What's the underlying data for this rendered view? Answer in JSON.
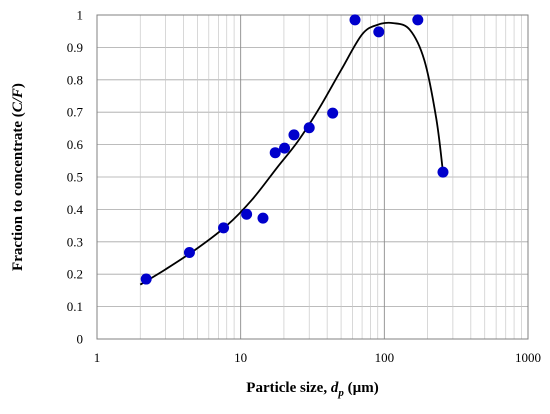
{
  "chart_data": {
    "type": "scatter",
    "title": "",
    "xlabel": {
      "prefix": "Particle size, ",
      "var": "d",
      "sub": "p",
      "suffix": " (µm)"
    },
    "ylabel": {
      "prefix": "Fraction  to concentrate (",
      "var": "C/F",
      "suffix": ")"
    },
    "x_scale": "log",
    "xlim": [
      1,
      1000
    ],
    "ylim": [
      0,
      1
    ],
    "x_ticks": [
      1,
      10,
      100,
      1000
    ],
    "x_tick_labels": [
      "1",
      "10",
      "100",
      "1000"
    ],
    "y_ticks": [
      0,
      0.1,
      0.2,
      0.3,
      0.4,
      0.5,
      0.6,
      0.7,
      0.8,
      0.9,
      1
    ],
    "y_tick_labels": [
      "0",
      "0.1",
      "0.2",
      "0.3",
      "0.4",
      "0.5",
      "0.6",
      "0.7",
      "0.8",
      "0.9",
      "1"
    ],
    "grid": true,
    "series": [
      {
        "type": "scatter",
        "color": "#0000cc",
        "points": [
          {
            "x": 2.2,
            "y": 0.185
          },
          {
            "x": 4.4,
            "y": 0.267
          },
          {
            "x": 7.6,
            "y": 0.343
          },
          {
            "x": 11,
            "y": 0.385
          },
          {
            "x": 14.3,
            "y": 0.373
          },
          {
            "x": 17.4,
            "y": 0.575
          },
          {
            "x": 20.2,
            "y": 0.589
          },
          {
            "x": 23.5,
            "y": 0.63
          },
          {
            "x": 30,
            "y": 0.652
          },
          {
            "x": 43.7,
            "y": 0.697
          },
          {
            "x": 62.5,
            "y": 0.985
          },
          {
            "x": 91.5,
            "y": 0.948
          },
          {
            "x": 171,
            "y": 0.985
          },
          {
            "x": 256,
            "y": 0.515
          }
        ]
      },
      {
        "type": "line",
        "color": "#000000",
        "points": [
          {
            "x": 2.0,
            "y": 0.168
          },
          {
            "x": 3.0,
            "y": 0.215
          },
          {
            "x": 5.0,
            "y": 0.28
          },
          {
            "x": 8.0,
            "y": 0.35
          },
          {
            "x": 12.0,
            "y": 0.43
          },
          {
            "x": 18.0,
            "y": 0.53
          },
          {
            "x": 25.0,
            "y": 0.61
          },
          {
            "x": 35.0,
            "y": 0.71
          },
          {
            "x": 50.0,
            "y": 0.83
          },
          {
            "x": 70.0,
            "y": 0.94
          },
          {
            "x": 90.0,
            "y": 0.97
          },
          {
            "x": 115.0,
            "y": 0.975
          },
          {
            "x": 150.0,
            "y": 0.955
          },
          {
            "x": 190.0,
            "y": 0.86
          },
          {
            "x": 230.0,
            "y": 0.68
          },
          {
            "x": 256.0,
            "y": 0.515
          }
        ]
      }
    ]
  }
}
